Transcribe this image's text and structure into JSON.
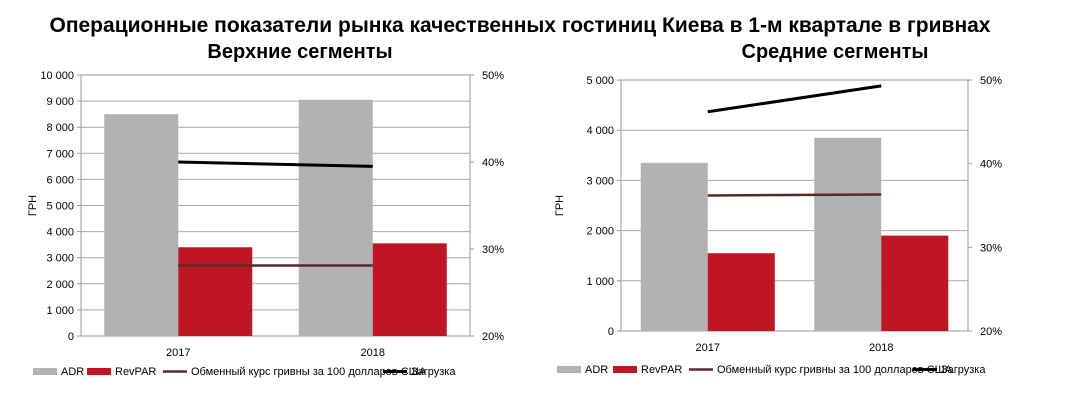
{
  "title": "Операционные показатели рынка качественных гостиниц Киева в 1-м квартале в гривнах",
  "chart_data": [
    {
      "type": "bar",
      "title": "Верхние сегменты",
      "ylabel": "ГРН",
      "categories": [
        "2017",
        "2018"
      ],
      "ylim": [
        0,
        10000
      ],
      "y_ticks": [
        "0",
        "1 000",
        "2 000",
        "3 000",
        "4 000",
        "5 000",
        "6 000",
        "7 000",
        "8 000",
        "9 000",
        "10 000"
      ],
      "y2lim": [
        20,
        50
      ],
      "y2_ticks": [
        "20%",
        "30%",
        "40%",
        "50%"
      ],
      "series": [
        {
          "name": "ADR",
          "type": "bar",
          "axis": "left",
          "color": "#b2b2b2",
          "values": [
            8500,
            9050
          ]
        },
        {
          "name": "RevPAR",
          "type": "bar",
          "axis": "left",
          "color": "#be1622",
          "values": [
            3400,
            3550
          ]
        },
        {
          "name": "Обменный курс гривны за 100 долларов США",
          "type": "line",
          "axis": "left",
          "color": "#5a2a2a",
          "values": [
            2700,
            2700
          ]
        },
        {
          "name": "Загрузка",
          "type": "line",
          "axis": "right",
          "color": "#000000",
          "values": [
            40.0,
            39.5
          ]
        }
      ],
      "grid": true,
      "legend": "bottom"
    },
    {
      "type": "bar",
      "title": "Средние сегменты",
      "ylabel": "ГРН",
      "categories": [
        "2017",
        "2018"
      ],
      "ylim": [
        0,
        5000
      ],
      "y_ticks": [
        "0",
        "1 000",
        "2 000",
        "3 000",
        "4 000",
        "5 000"
      ],
      "y2lim": [
        20,
        50
      ],
      "y2_ticks": [
        "20%",
        "30%",
        "40%",
        "50%"
      ],
      "series": [
        {
          "name": "ADR",
          "type": "bar",
          "axis": "left",
          "color": "#b2b2b2",
          "values": [
            3350,
            3850
          ]
        },
        {
          "name": "RevPAR",
          "type": "bar",
          "axis": "left",
          "color": "#be1622",
          "values": [
            1550,
            1900
          ]
        },
        {
          "name": "Обменный курс гривны за 100 долларов США",
          "type": "line",
          "axis": "left",
          "color": "#5a2a2a",
          "values": [
            2700,
            2720
          ]
        },
        {
          "name": "Загрузка",
          "type": "line",
          "axis": "right",
          "color": "#000000",
          "values": [
            46.2,
            49.3
          ]
        }
      ],
      "grid": true,
      "legend": "bottom"
    }
  ]
}
